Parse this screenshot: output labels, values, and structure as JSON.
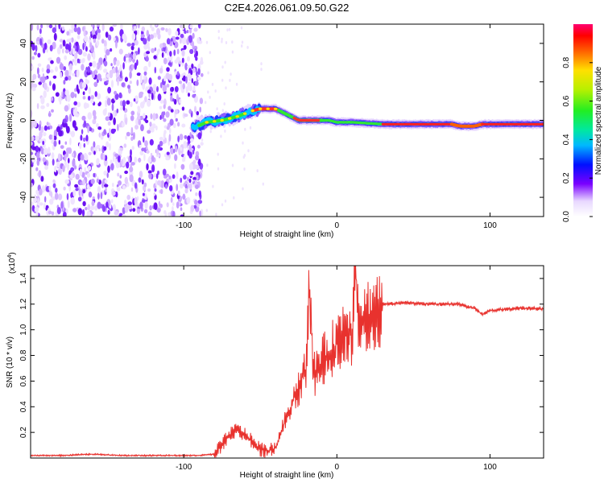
{
  "title": "C2E4.2026.061.09.50.G22",
  "chart_data": [
    {
      "type": "heatmap",
      "name": "spectrogram",
      "xlabel": "Height of straight line (km)",
      "ylabel": "Frequency (Hz)",
      "xlim": [
        -200,
        135
      ],
      "ylim": [
        -50,
        50
      ],
      "xticks": [
        -100,
        0,
        100
      ],
      "xtick_labels": [
        "-100",
        "0",
        "100"
      ],
      "yticks": [
        -40,
        -20,
        0,
        20,
        40
      ],
      "ytick_labels": [
        "-40",
        "-20",
        "0",
        "20",
        "40"
      ],
      "noise_region_end_km": -88,
      "ridge": {
        "x": [
          -94,
          -85,
          -75,
          -65,
          -55,
          -50,
          -45,
          -40,
          -35,
          -30,
          -25,
          -20,
          -15,
          -10,
          -5,
          0,
          10,
          20,
          30,
          40,
          50,
          60,
          70,
          75,
          80,
          85,
          90,
          95,
          100,
          110,
          120,
          135
        ],
        "y": [
          -4,
          -1,
          0,
          2,
          5,
          6,
          6,
          6,
          4,
          2,
          0,
          0,
          0,
          0,
          0,
          -1,
          -1,
          -1.5,
          -2,
          -2,
          -2,
          -2,
          -2,
          -2,
          -3,
          -3,
          -3,
          -2,
          -2,
          -2,
          -2,
          -2
        ]
      },
      "colorbar": {
        "label": "Normalized spectral amplitude",
        "range": [
          0,
          1
        ],
        "ticks": [
          0.0,
          0.2,
          0.4,
          0.6,
          0.8
        ],
        "tick_labels": [
          "0.0",
          "0.2",
          "0.4",
          "0.6",
          "0.8"
        ]
      }
    },
    {
      "type": "line",
      "name": "snr",
      "xlabel": "Height of straight line (km)",
      "ylabel": "SNR (10 * v/v)",
      "multiplier_label": "(x10",
      "multiplier_exponent": "4",
      "multiplier_close": ")",
      "xlim": [
        -200,
        135
      ],
      "ylim": [
        0,
        1.5
      ],
      "xticks": [
        -100,
        0,
        100
      ],
      "xtick_labels": [
        "-100",
        "0",
        "100"
      ],
      "yticks": [
        0.2,
        0.4,
        0.6,
        0.8,
        1.0,
        1.2,
        1.4
      ],
      "ytick_labels": [
        "0.2",
        "0.4",
        "0.6",
        "0.8",
        "1.0",
        "1.2",
        "1.4"
      ],
      "color": "#e8322e",
      "series": {
        "x": [
          -200,
          -180,
          -160,
          -140,
          -120,
          -100,
          -90,
          -80,
          -75,
          -70,
          -65,
          -60,
          -55,
          -50,
          -45,
          -40,
          -35,
          -30,
          -25,
          -20,
          -18,
          -15,
          -10,
          -5,
          0,
          5,
          10,
          12,
          15,
          20,
          25,
          30,
          35,
          40,
          50,
          60,
          70,
          80,
          85,
          90,
          95,
          100,
          110,
          120,
          135
        ],
        "y": [
          0.02,
          0.02,
          0.03,
          0.02,
          0.02,
          0.02,
          0.02,
          0.03,
          0.1,
          0.18,
          0.22,
          0.18,
          0.12,
          0.07,
          0.05,
          0.08,
          0.25,
          0.4,
          0.55,
          0.7,
          1.27,
          0.65,
          0.75,
          0.8,
          0.9,
          1.0,
          1.0,
          1.5,
          1.05,
          1.1,
          1.15,
          1.2,
          1.2,
          1.21,
          1.21,
          1.2,
          1.2,
          1.2,
          1.18,
          1.17,
          1.12,
          1.15,
          1.16,
          1.17,
          1.16
        ]
      }
    }
  ]
}
